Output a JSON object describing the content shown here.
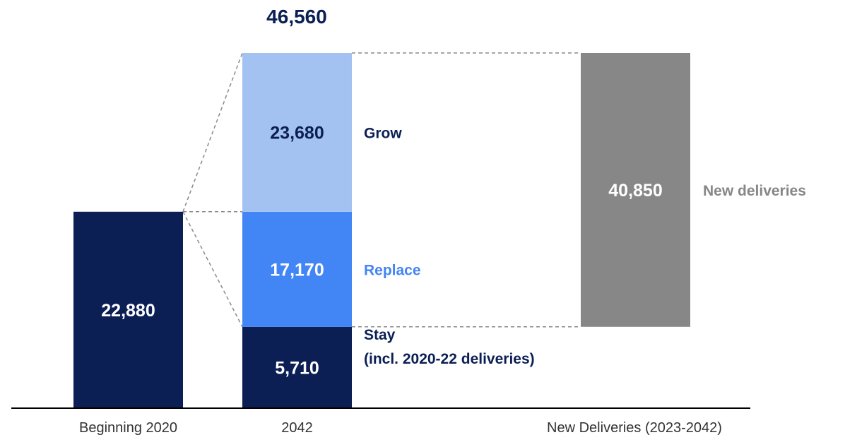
{
  "chart_data": {
    "type": "bar",
    "stacked": true,
    "categories": [
      "Beginning 2020",
      "2042",
      "New Deliveries (2023-2042)"
    ],
    "total_label": "46,560",
    "total": 46560,
    "bars": [
      {
        "category": "Beginning 2020",
        "segments": [
          {
            "value": 22880,
            "label": "22,880",
            "color": "#0b1f55"
          }
        ]
      },
      {
        "category": "2042",
        "segments": [
          {
            "value": 5710,
            "label": "5,710",
            "name": "Stay",
            "name_line2": "(incl. 2020-22 deliveries)",
            "color": "#0b1f55",
            "name_color": "#0b1f55"
          },
          {
            "value": 17170,
            "label": "17,170",
            "name": "Replace",
            "color": "#4285f4",
            "name_color": "#4285f4"
          },
          {
            "value": 23680,
            "label": "23,680",
            "name": "Grow",
            "color": "#a3c2f2",
            "label_color": "#0b1f55",
            "name_color": "#0b1f55"
          }
        ]
      },
      {
        "category": "New Deliveries (2023-2042)",
        "base": 5710,
        "segments": [
          {
            "value": 40850,
            "label": "40,850",
            "name": "New deliveries",
            "color": "#878787",
            "name_color": "#878787"
          }
        ]
      }
    ],
    "colors": {
      "dark_navy": "#0b1f55",
      "replace_blue": "#4285f4",
      "grow_light_blue": "#a3c2f2",
      "new_deliveries_gray": "#878787",
      "connector": "#8a8a8a",
      "axis": "#000000",
      "category_text": "#333333"
    }
  }
}
